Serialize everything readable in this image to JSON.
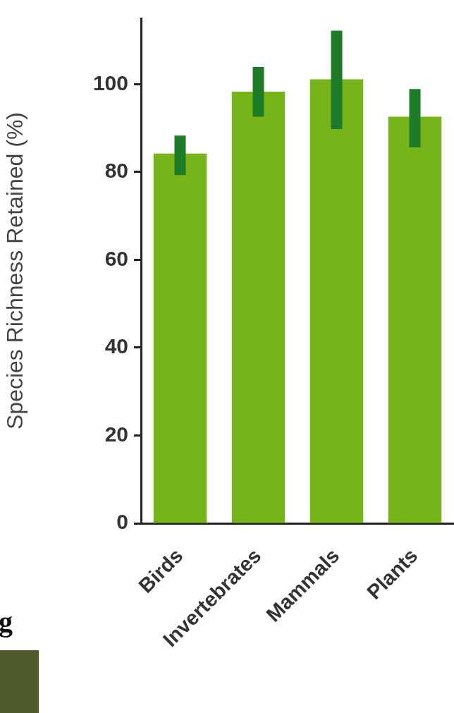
{
  "chart_data": {
    "type": "bar",
    "ylabel": "Species Richness Retained (%)",
    "categories": [
      "Birds",
      "Invertebrates",
      "Mammals",
      "Plants"
    ],
    "values": [
      84.2,
      98.3,
      101.1,
      92.6
    ],
    "errors": [
      [
        79.3,
        88.3
      ],
      [
        92.6,
        103.9
      ],
      [
        89.8,
        112.2
      ],
      [
        85.6,
        98.9
      ]
    ],
    "color": "#76b41a",
    "ylim": [
      0,
      115
    ],
    "yticks": [
      0,
      20,
      40,
      60,
      80,
      100
    ],
    "grid": false,
    "legend": false,
    "annotations": [
      "g"
    ]
  }
}
